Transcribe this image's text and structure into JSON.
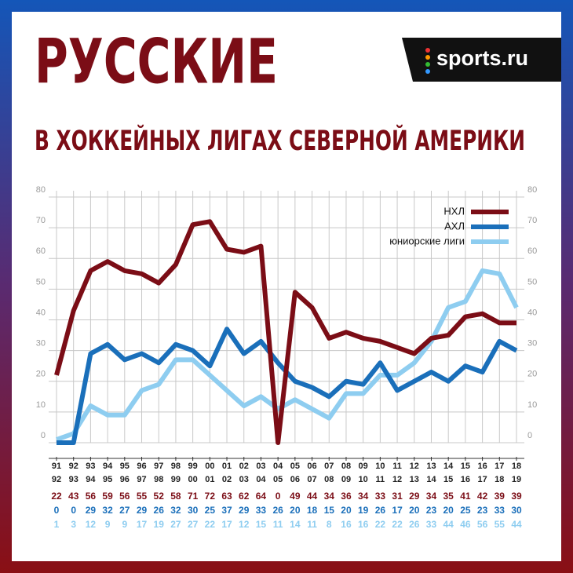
{
  "logo": "sports.ru",
  "chart_data": {
    "type": "line",
    "title": "РУССКИЕ",
    "subtitle": "В ХОККЕЙНЫХ ЛИГАХ СЕВЕРНОЙ АМЕРИКИ",
    "categories": [
      [
        "91",
        "92"
      ],
      [
        "92",
        "93"
      ],
      [
        "93",
        "94"
      ],
      [
        "94",
        "95"
      ],
      [
        "95",
        "96"
      ],
      [
        "96",
        "97"
      ],
      [
        "97",
        "98"
      ],
      [
        "98",
        "99"
      ],
      [
        "99",
        "00"
      ],
      [
        "00",
        "01"
      ],
      [
        "01",
        "02"
      ],
      [
        "02",
        "03"
      ],
      [
        "03",
        "04"
      ],
      [
        "04",
        "05"
      ],
      [
        "05",
        "06"
      ],
      [
        "06",
        "07"
      ],
      [
        "07",
        "08"
      ],
      [
        "08",
        "09"
      ],
      [
        "09",
        "10"
      ],
      [
        "10",
        "11"
      ],
      [
        "11",
        "12"
      ],
      [
        "12",
        "13"
      ],
      [
        "13",
        "14"
      ],
      [
        "14",
        "15"
      ],
      [
        "15",
        "16"
      ],
      [
        "16",
        "17"
      ],
      [
        "17",
        "18"
      ],
      [
        "18",
        "19"
      ]
    ],
    "series": [
      {
        "name": "НХЛ",
        "color": "#7b0d16",
        "values": [
          22,
          43,
          56,
          59,
          56,
          55,
          52,
          58,
          71,
          72,
          63,
          62,
          64,
          0,
          49,
          44,
          34,
          36,
          34,
          33,
          31,
          29,
          34,
          35,
          41,
          42,
          39,
          39
        ]
      },
      {
        "name": "АХЛ",
        "color": "#1a6fba",
        "values": [
          0,
          0,
          29,
          32,
          27,
          29,
          26,
          32,
          30,
          25,
          37,
          29,
          33,
          26,
          20,
          18,
          15,
          20,
          19,
          26,
          17,
          20,
          23,
          20,
          25,
          23,
          33,
          30
        ]
      },
      {
        "name": "юниорские лиги",
        "color": "#8ecdf0",
        "values": [
          1,
          3,
          12,
          9,
          9,
          17,
          19,
          27,
          27,
          22,
          17,
          12,
          15,
          11,
          14,
          11,
          8,
          16,
          16,
          22,
          22,
          26,
          33,
          44,
          46,
          56,
          55,
          44
        ]
      }
    ],
    "ylim": [
      0,
      80
    ],
    "yticks": [
      0,
      10,
      20,
      30,
      40,
      50,
      60,
      70,
      80
    ],
    "grid": true,
    "legend": "top-right"
  }
}
